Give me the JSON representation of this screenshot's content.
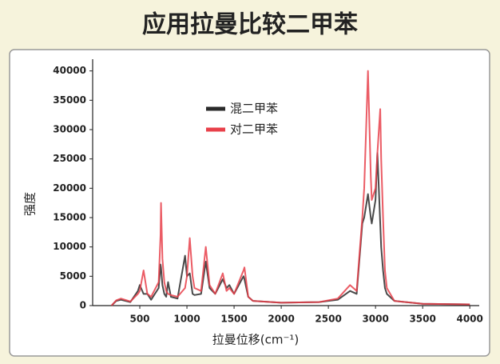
{
  "chart_data": {
    "type": "line",
    "title": "应用拉曼比较二甲苯",
    "x_label": "拉曼位移(cm⁻¹)",
    "y_label": "强度",
    "x": [
      200,
      250,
      300,
      400,
      480,
      500,
      540,
      580,
      620,
      700,
      720,
      725,
      740,
      760,
      780,
      800,
      830,
      900,
      980,
      1000,
      1030,
      1060,
      1080,
      1150,
      1200,
      1240,
      1300,
      1380,
      1420,
      1450,
      1500,
      1600,
      1610,
      1650,
      1700,
      2000,
      2400,
      2600,
      2730,
      2800,
      2860,
      2880,
      2920,
      2950,
      2960,
      3000,
      3020,
      3050,
      3060,
      3080,
      3100,
      3120,
      3200,
      3500,
      4000
    ],
    "series": [
      {
        "name": "混二甲苯",
        "color": "#2a2a2a",
        "values": [
          0,
          800,
          1000,
          600,
          2500,
          3500,
          2000,
          2000,
          1000,
          3000,
          7000,
          6500,
          3500,
          2000,
          1500,
          4000,
          1500,
          1200,
          8500,
          5000,
          5500,
          2000,
          1800,
          2000,
          7500,
          3000,
          2000,
          4500,
          3000,
          3500,
          2000,
          5000,
          4500,
          1500,
          800,
          500,
          600,
          1000,
          2500,
          2000,
          14000,
          15000,
          19000,
          15000,
          14000,
          18000,
          26000,
          14000,
          10000,
          6000,
          3000,
          2000,
          800,
          300,
          200
        ]
      },
      {
        "name": "对二甲苯",
        "color": "#e8404a",
        "values": [
          0,
          900,
          1200,
          700,
          2000,
          2500,
          6000,
          2000,
          1500,
          4000,
          12000,
          17500,
          8000,
          4000,
          2500,
          2000,
          1800,
          1500,
          3000,
          5000,
          11500,
          5000,
          3000,
          2500,
          10000,
          3500,
          2000,
          5500,
          2500,
          3000,
          2000,
          6000,
          6500,
          1500,
          800,
          500,
          600,
          1200,
          3500,
          2500,
          15000,
          20000,
          40000,
          22000,
          18000,
          20000,
          26000,
          33500,
          25000,
          15000,
          6000,
          3000,
          800,
          300,
          200
        ]
      }
    ],
    "xlim": [
      0,
      4100
    ],
    "ylim": [
      0,
      42000
    ],
    "xticks": [
      500,
      1000,
      1500,
      2000,
      2500,
      3000,
      3500,
      4000
    ],
    "yticks": [
      0,
      5000,
      10000,
      15000,
      20000,
      25000,
      30000,
      35000,
      40000
    ],
    "legend": "upper left"
  }
}
